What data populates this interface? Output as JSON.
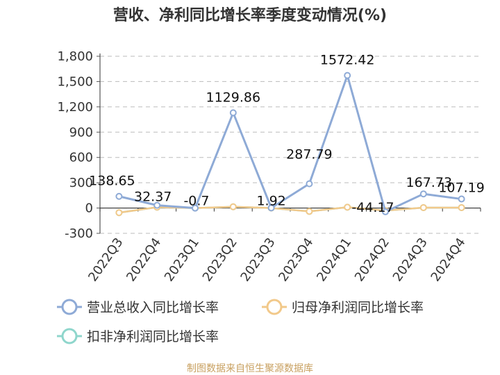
{
  "title": "营收、净利同比增长率季度变动情况(%)",
  "footer": "制图数据来自恒生聚源数据库",
  "chart_data": {
    "type": "line",
    "categories": [
      "2022Q3",
      "2022Q4",
      "2023Q1",
      "2023Q2",
      "2023Q3",
      "2023Q4",
      "2024Q1",
      "2024Q2",
      "2024Q3",
      "2024Q4"
    ],
    "ylim": [
      -300,
      1800
    ],
    "yticks": [
      -300,
      0,
      300,
      600,
      900,
      1200,
      1500,
      1800
    ],
    "ytick_labels": [
      "-300",
      "0",
      "300",
      "600",
      "900",
      "1,200",
      "1,500",
      "1,800"
    ],
    "grid": true,
    "legend_position": "bottom",
    "series": [
      {
        "name": "营业总收入同比增长率",
        "color": "#8eaad6",
        "values": [
          138.65,
          32.37,
          -0.7,
          1129.86,
          1.92,
          287.79,
          1572.42,
          -44.17,
          167.73,
          107.19
        ],
        "labels": [
          "138.65",
          "32.37",
          "-0.7",
          "1129.86",
          "1.92",
          "287.79",
          "1572.42",
          "-44.17",
          "167.73",
          "107.19"
        ]
      },
      {
        "name": "归母净利润同比增长率",
        "color": "#f2c98a",
        "values": [
          -55,
          10,
          0,
          15,
          0,
          -40,
          10,
          -30,
          5,
          5
        ]
      },
      {
        "name": "扣非净利润同比增长率",
        "color": "#8fd6cc",
        "values": [
          -55,
          10,
          0,
          15,
          0,
          -40,
          10,
          -30,
          5,
          5
        ]
      }
    ]
  }
}
